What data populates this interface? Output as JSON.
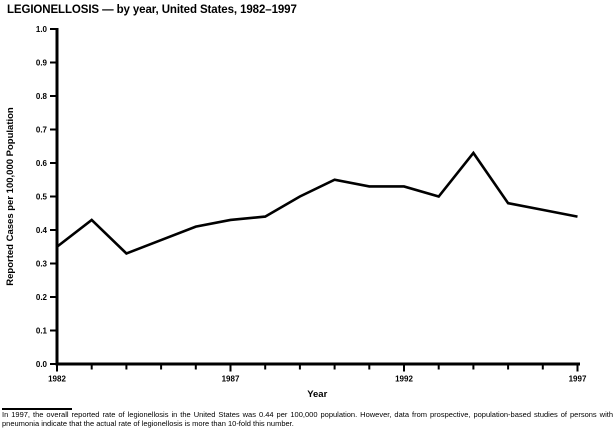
{
  "chart_data": {
    "type": "line",
    "title": "LEGIONELLOSIS — by year, United States, 1982–1997",
    "xlabel": "Year",
    "ylabel": "Reported Cases per 100,000 Population",
    "x": [
      1982,
      1983,
      1984,
      1985,
      1986,
      1987,
      1988,
      1989,
      1990,
      1991,
      1992,
      1993,
      1994,
      1995,
      1996,
      1997
    ],
    "values": [
      0.35,
      0.43,
      0.33,
      0.37,
      0.41,
      0.43,
      0.44,
      0.5,
      0.55,
      0.53,
      0.53,
      0.5,
      0.63,
      0.48,
      0.46,
      0.44
    ],
    "xlim": [
      1982,
      1997
    ],
    "ylim": [
      0.0,
      1.0
    ],
    "yticks": [
      "0.0",
      "0.1",
      "0.2",
      "0.3",
      "0.4",
      "0.5",
      "0.6",
      "0.7",
      "0.8",
      "0.9",
      "1.0"
    ],
    "xticks_labeled": [
      1982,
      1987,
      1992,
      1997
    ],
    "grid": false,
    "legend_position": "none",
    "line_color": "#000000"
  },
  "footnote": "In 1997, the overall reported rate of legionellosis in the United States was 0.44 per 100,000 population. However, data from prospective, population-based studies of persons with pneumonia indicate that the actual rate of legionellosis is more than 10-fold this number."
}
